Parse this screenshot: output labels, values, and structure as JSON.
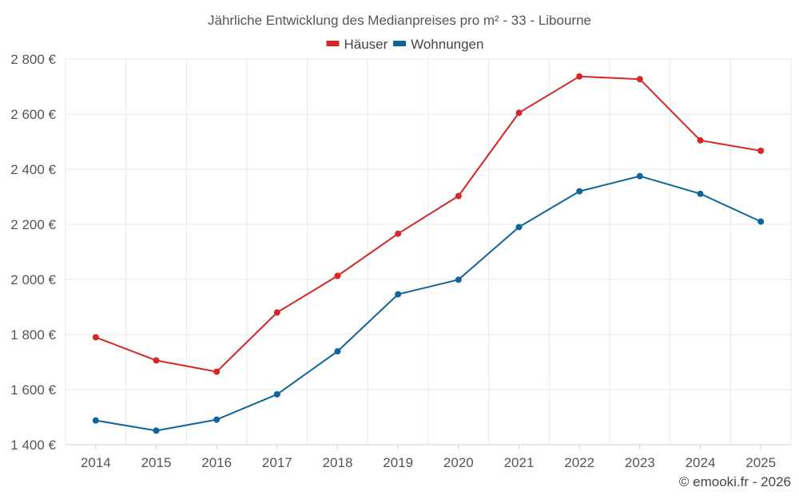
{
  "chart_data": {
    "type": "line",
    "title": "Jährliche Entwicklung des Medianpreises pro m² - 33 - Libourne",
    "categories": [
      "2014",
      "2015",
      "2016",
      "2017",
      "2018",
      "2019",
      "2020",
      "2021",
      "2022",
      "2023",
      "2024",
      "2025"
    ],
    "series": [
      {
        "name": "Häuser",
        "color": "#d62728",
        "values": [
          1790,
          1706,
          1665,
          1880,
          2013,
          2166,
          2303,
          2605,
          2737,
          2727,
          2505,
          2467
        ]
      },
      {
        "name": "Wohnungen",
        "color": "#0f649c",
        "values": [
          1488,
          1451,
          1491,
          1583,
          1739,
          1946,
          1999,
          2190,
          2320,
          2375,
          2311,
          2210
        ]
      }
    ],
    "ylim": [
      1400,
      2800
    ],
    "yticks": [
      1400,
      1600,
      1800,
      2000,
      2200,
      2400,
      2600,
      2800
    ],
    "ytick_labels": [
      "1 400 €",
      "1 600 €",
      "1 800 €",
      "2 000 €",
      "2 200 €",
      "2 400 €",
      "2 600 €",
      "2 800 €"
    ],
    "legend_position": "top-center",
    "grid": true
  },
  "credit": "© emooki.fr - 2026"
}
